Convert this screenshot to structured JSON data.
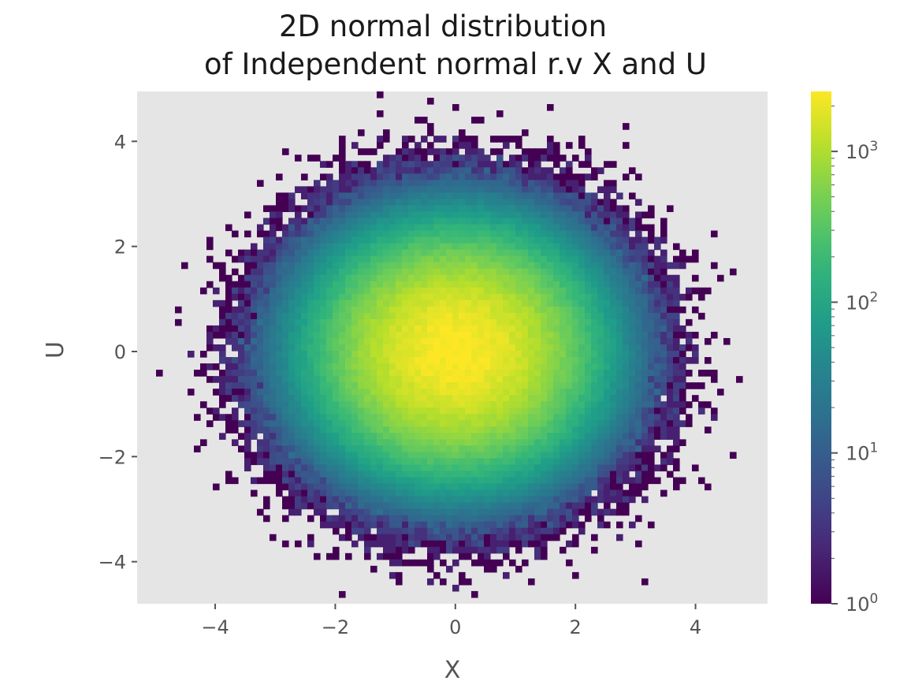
{
  "chart_data": {
    "type": "heatmap",
    "title": "2D normal distribution\nof Independent normal r.v X and U",
    "xlabel": "X",
    "ylabel": "U",
    "xlim": [
      -5.3,
      5.2
    ],
    "ylim": [
      -4.8,
      4.95
    ],
    "xticks": [
      -4,
      -2,
      0,
      2,
      4
    ],
    "xtick_labels": [
      "−4",
      "−2",
      "0",
      "2",
      "4"
    ],
    "yticks": [
      -4,
      -2,
      0,
      2,
      4
    ],
    "ytick_labels": [
      "−4",
      "−2",
      "0",
      "2",
      "4"
    ],
    "grid": false,
    "colormap": "viridis",
    "colorbar": {
      "scale": "log",
      "range": [
        1,
        2500
      ],
      "ticks": [
        1,
        10,
        100,
        1000
      ],
      "tick_labels": [
        {
          "base": "10",
          "exp": "0"
        },
        {
          "base": "10",
          "exp": "1"
        },
        {
          "base": "10",
          "exp": "2"
        },
        {
          "base": "10",
          "exp": "3"
        }
      ]
    },
    "distribution": {
      "x_mean": 0.0,
      "x_std": 1.0,
      "y_mean": 0.0,
      "y_std": 1.0,
      "peak_count": 2500
    },
    "colors": {
      "axes_background": "#e5e5e5",
      "figure_background": "#ffffff",
      "tick_color": "#555555"
    }
  }
}
